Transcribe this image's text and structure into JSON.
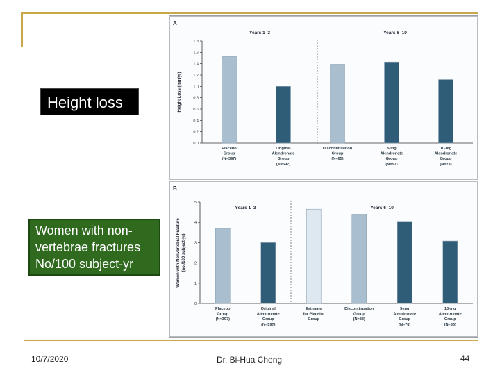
{
  "slide": {
    "label_height": "Height loss",
    "label_fracture_lines": [
      "Women with non-",
      "vertebrae fractures",
      "No/100 subject-yr"
    ],
    "footer_date": "10/7/2020",
    "footer_author": "Dr. Bi-Hua Cheng",
    "footer_page": "44"
  },
  "colors": {
    "accent_line": "#c8a84a",
    "light_bar": "#a9bfcf",
    "lighter_bar": "#dde8f1",
    "dark_bar": "#2f5d78"
  },
  "chart_data": [
    {
      "type": "bar",
      "panel_label": "A",
      "title": "",
      "ylabel": "Height Loss (mm/yr)",
      "ylim": [
        0,
        1.8
      ],
      "yticks": [
        "0.0",
        "0.2",
        "0.4",
        "0.6",
        "0.8",
        "1.0",
        "1.2",
        "1.4",
        "1.6",
        "1.8"
      ],
      "period_labels": [
        "Years 1–3",
        "Years 6–10"
      ],
      "categories": [
        [
          "Placebo",
          "Group",
          "(N=397)"
        ],
        [
          "Original",
          "Alendronate",
          "Group",
          "(N=597)"
        ],
        [
          "Discontinuation",
          "Group",
          "(N=65)"
        ],
        [
          "5-mg",
          "Alendronate",
          "Group",
          "(N=57)"
        ],
        [
          "10-mg",
          "Alendronate",
          "Group",
          "(N=73)"
        ]
      ],
      "values": [
        1.53,
        1.0,
        1.39,
        1.43,
        1.12
      ],
      "styles": [
        "light",
        "dark",
        "light",
        "dark",
        "dark"
      ],
      "divider_after_index": 1
    },
    {
      "type": "bar",
      "panel_label": "B",
      "title": "",
      "ylabel": "Women with Nonvertebral Fracture (no./100 subject-yr)",
      "ylim": [
        0,
        5
      ],
      "yticks": [
        "0",
        "1",
        "2",
        "3",
        "4",
        "5"
      ],
      "period_labels": [
        "Years 1–3",
        "Years 6–10"
      ],
      "categories": [
        [
          "Placebo",
          "Group",
          "(N=397)"
        ],
        [
          "Original",
          "Alendronate",
          "Group",
          "(N=597)"
        ],
        [
          "Estimate",
          "for Placebo",
          "Group"
        ],
        [
          "Discontinuation",
          "Group",
          "(N=83)"
        ],
        [
          "5-mg",
          "Alendronate",
          "Group",
          "(N=78)"
        ],
        [
          "10-mg",
          "Alendronate",
          "Group",
          "(N=86)"
        ]
      ],
      "values": [
        3.7,
        3.0,
        4.65,
        4.4,
        4.05,
        3.08
      ],
      "styles": [
        "light",
        "dark",
        "lighter",
        "light",
        "dark",
        "dark"
      ],
      "divider_after_index": 1
    }
  ]
}
